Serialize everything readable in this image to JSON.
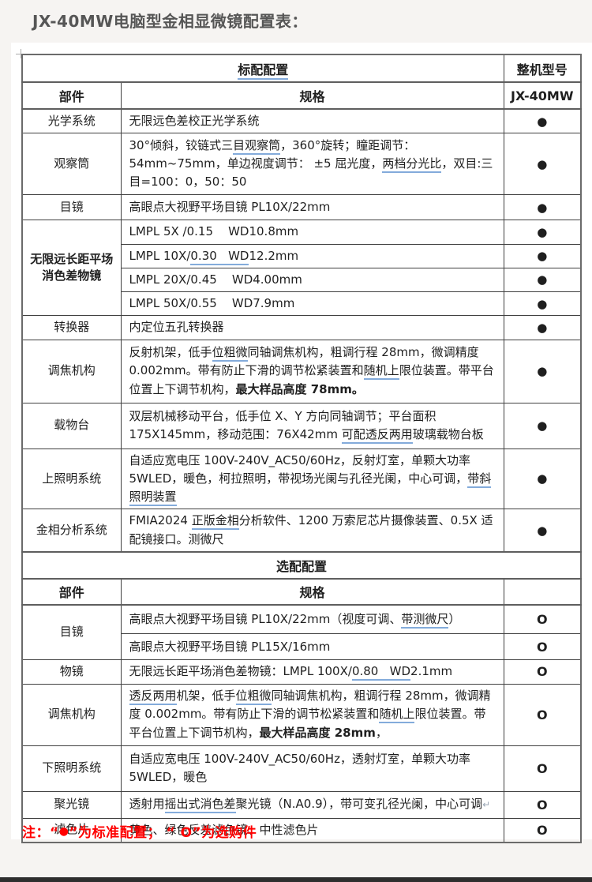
{
  "page": {
    "title": "JX-40MW电脑型金相显微镜配置表：",
    "legend": {
      "prefix": "注：“",
      "bullet": "●",
      "suffix": "”为标准配置； “ O”为选购件"
    }
  },
  "colors": {
    "note_red": "#ff0000",
    "underline_blue": "#83abdb",
    "table_border": "#404040",
    "title_gray": "#565656",
    "bottom_bar": "#2e2e2e"
  },
  "marks": {
    "standard": "●",
    "optional": "O"
  },
  "table": {
    "rows": [
      {
        "h": 35,
        "sep": true,
        "cells": [
          {
            "kind": "header",
            "colspan": 2,
            "name": "standard-config-header",
            "segments": [
              {
                "t": "标配配置",
                "u": true
              }
            ]
          },
          {
            "kind": "header",
            "name": "model-column-header",
            "segments": [
              {
                "t": "整机型号"
              }
            ]
          }
        ]
      },
      {
        "h": 34,
        "sep": true,
        "cells": [
          {
            "kind": "header",
            "name": "part-column-header",
            "segments": [
              {
                "t": "部件"
              }
            ]
          },
          {
            "kind": "header",
            "name": "spec-column-header",
            "segments": [
              {
                "t": "规格"
              }
            ]
          },
          {
            "kind": "header",
            "name": "model-value-header",
            "segments": [
              {
                "t": "JX-40MW"
              }
            ]
          }
        ]
      },
      {
        "h": 30,
        "cells": [
          {
            "kind": "part",
            "segments": [
              {
                "t": "光学系统"
              }
            ]
          },
          {
            "kind": "spec",
            "segments": [
              {
                "t": "无限远色差校正光学系统"
              }
            ]
          },
          {
            "kind": "mark",
            "segments": [
              {
                "t": "●"
              }
            ]
          }
        ]
      },
      {
        "h": 78,
        "cells": [
          {
            "kind": "part",
            "segments": [
              {
                "t": "观察筒"
              }
            ]
          },
          {
            "kind": "spec",
            "segments": [
              {
                "t": "30°倾斜，铰链式三"
              },
              {
                "t": "目观察筒",
                "u": true
              },
              {
                "t": "，360°旋转；瞳距调节：54mm~75mm，单边视度调节： ±5 屈光度，"
              },
              {
                "t": "两档分光比",
                "u": true
              },
              {
                "t": "，双目:三目=100：0，50：50"
              }
            ]
          },
          {
            "kind": "mark",
            "segments": [
              {
                "t": "●"
              }
            ]
          }
        ]
      },
      {
        "h": 32,
        "cells": [
          {
            "kind": "part",
            "segments": [
              {
                "t": "目镜"
              }
            ]
          },
          {
            "kind": "spec",
            "segments": [
              {
                "t": "高眼点大视野平场目镜 PL10X/22mm"
              }
            ]
          },
          {
            "kind": "mark",
            "segments": [
              {
                "t": "●"
              }
            ]
          }
        ]
      },
      {
        "h": 28,
        "cells": [
          {
            "kind": "part",
            "rowspan": 4,
            "bold": true,
            "name": "objective-group-label",
            "segments": [
              {
                "t": "无限远长距平场消色差物镜"
              }
            ]
          },
          {
            "kind": "spec",
            "segments": [
              {
                "t": "LMPL 5X /0.15    WD10.8mm"
              }
            ]
          },
          {
            "kind": "mark",
            "segments": [
              {
                "t": "●"
              }
            ]
          }
        ]
      },
      {
        "h": 28,
        "cells": [
          {
            "kind": "spec",
            "segments": [
              {
                "t": "LMPL 10X/"
              },
              {
                "t": "0.30   WD",
                "u": true
              },
              {
                "t": "12.2mm"
              }
            ]
          },
          {
            "kind": "mark",
            "segments": [
              {
                "t": "●"
              }
            ]
          }
        ]
      },
      {
        "h": 28,
        "cells": [
          {
            "kind": "spec",
            "segments": [
              {
                "t": "LMPL 20X/0.45    WD4.00mm"
              }
            ]
          },
          {
            "kind": "mark",
            "segments": [
              {
                "t": "●"
              }
            ]
          }
        ]
      },
      {
        "h": 29,
        "cells": [
          {
            "kind": "spec",
            "segments": [
              {
                "t": "LMPL 50X/0.55    WD7.9mm"
              }
            ]
          },
          {
            "kind": "mark",
            "segments": [
              {
                "t": "●"
              }
            ]
          }
        ]
      },
      {
        "h": 28,
        "cells": [
          {
            "kind": "part",
            "segments": [
              {
                "t": "转换器"
              }
            ]
          },
          {
            "kind": "spec",
            "segments": [
              {
                "t": "内定位五孔转换器"
              }
            ]
          },
          {
            "kind": "mark",
            "segments": [
              {
                "t": "●"
              }
            ]
          }
        ]
      },
      {
        "h": 80,
        "cells": [
          {
            "kind": "part",
            "segments": [
              {
                "t": "调焦机构"
              }
            ]
          },
          {
            "kind": "spec",
            "segments": [
              {
                "t": "反射机架，低手"
              },
              {
                "t": "位粗微",
                "u": true
              },
              {
                "t": "同轴调焦机构，粗调行程 28mm，微调精度 0.002mm。带有防止下滑的调节松紧装置和"
              },
              {
                "t": "随机上",
                "u": true
              },
              {
                "t": "限位装置。带平台位置上下调节机构，"
              },
              {
                "t": "最大样品高度 78mm。",
                "b": true
              }
            ]
          },
          {
            "kind": "mark",
            "segments": [
              {
                "t": "●"
              }
            ]
          }
        ]
      },
      {
        "h": 58,
        "cells": [
          {
            "kind": "part",
            "segments": [
              {
                "t": "载物台"
              }
            ]
          },
          {
            "kind": "spec",
            "segments": [
              {
                "t": "双层机械移动平台，低手位 X、Y 方向同轴调节；平台面积 175X145mm，移动范围：76X42mm "
              },
              {
                "t": "可配透反两用",
                "u": true
              },
              {
                "t": "玻璃载物台板"
              }
            ]
          },
          {
            "kind": "mark",
            "segments": [
              {
                "t": "●"
              }
            ]
          }
        ]
      },
      {
        "h": 69,
        "cells": [
          {
            "kind": "part",
            "segments": [
              {
                "t": "上照明系统"
              }
            ]
          },
          {
            "kind": "spec",
            "segments": [
              {
                "t": "自适应宽电压 100V-240V_AC50/60Hz，反射灯室，单颗大功率 5WLED，暖色，柯拉照明，带视场光阑与孔径光阑，中心可调，"
              },
              {
                "t": "带斜照明装置",
                "u": true
              }
            ]
          },
          {
            "kind": "mark",
            "segments": [
              {
                "t": "●"
              }
            ]
          }
        ]
      },
      {
        "h": 53,
        "sep": true,
        "cells": [
          {
            "kind": "part",
            "segments": [
              {
                "t": "金相分析系统"
              }
            ]
          },
          {
            "kind": "spec",
            "segments": [
              {
                "t": "FMIA2024 "
              },
              {
                "t": "正版金相",
                "u": true
              },
              {
                "t": "分析软件、1200 万索尼芯片摄像装置、0.5X 适配镜接口。测微尺"
              }
            ]
          },
          {
            "kind": "mark",
            "segments": [
              {
                "t": "●"
              }
            ]
          }
        ]
      },
      {
        "h": 34,
        "sep": true,
        "cells": [
          {
            "kind": "header",
            "colspan": 3,
            "name": "optional-config-header",
            "segments": [
              {
                "t": "选配配置"
              }
            ]
          }
        ]
      },
      {
        "h": 33,
        "sep": true,
        "cells": [
          {
            "kind": "header",
            "name": "part-column-header-optional",
            "segments": [
              {
                "t": "部件"
              }
            ]
          },
          {
            "kind": "header",
            "name": "spec-column-header-optional",
            "segments": [
              {
                "t": "规格"
              }
            ]
          },
          {
            "kind": "header",
            "name": "empty-header-cell",
            "segments": []
          }
        ]
      },
      {
        "h": 37,
        "cells": [
          {
            "kind": "part",
            "rowspan": 2,
            "segments": [
              {
                "t": "目镜"
              }
            ]
          },
          {
            "kind": "spec",
            "segments": [
              {
                "t": "高眼点大视野平场目镜 PL10X/22mm（视度可调、"
              },
              {
                "t": "带测微尺",
                "u": true
              },
              {
                "t": "）"
              }
            ]
          },
          {
            "kind": "mark",
            "segments": [
              {
                "t": "O",
                "b": true
              }
            ]
          }
        ]
      },
      {
        "h": 33,
        "cells": [
          {
            "kind": "spec",
            "segments": [
              {
                "t": "高眼点大视野平场目镜 PL15X/16mm"
              }
            ]
          },
          {
            "kind": "mark",
            "segments": [
              {
                "t": "O",
                "b": true
              }
            ]
          }
        ]
      },
      {
        "h": 27,
        "cells": [
          {
            "kind": "part",
            "segments": [
              {
                "t": "物镜"
              }
            ]
          },
          {
            "kind": "spec",
            "segments": [
              {
                "t": "无限远长距平场消色差物镜：LMPL 100X/"
              },
              {
                "t": "0.80   WD",
                "u": true
              },
              {
                "t": "2.1mm"
              }
            ]
          },
          {
            "kind": "mark",
            "segments": [
              {
                "t": "O",
                "b": true
              }
            ]
          }
        ]
      },
      {
        "h": 78,
        "cells": [
          {
            "kind": "part",
            "segments": [
              {
                "t": "调焦机构"
              }
            ]
          },
          {
            "kind": "spec",
            "segments": [
              {
                "t": "透反两用",
                "u": true
              },
              {
                "t": "机架，低手"
              },
              {
                "t": "位粗微",
                "u": true
              },
              {
                "t": "同轴调焦机构，粗调行程 28mm，微调精度 0.002mm。带有防止下滑的调节松紧装置和"
              },
              {
                "t": "随机上",
                "u": true
              },
              {
                "t": "限位装置。带平台位置上下调节机构，"
              },
              {
                "t": "最大样品高度 28mm",
                "b": true
              },
              {
                "t": "，"
              }
            ]
          },
          {
            "kind": "mark",
            "segments": [
              {
                "t": "O",
                "b": true
              }
            ]
          }
        ]
      },
      {
        "h": 58,
        "cells": [
          {
            "kind": "part",
            "segments": [
              {
                "t": "下照明系统"
              }
            ]
          },
          {
            "kind": "spec",
            "segments": [
              {
                "t": "自适应宽电压 100V-240V_AC50/60Hz，透射灯室，单颗大功率 5WLED，暖色"
              }
            ]
          },
          {
            "kind": "mark",
            "segments": [
              {
                "t": "O",
                "b": true
              }
            ]
          }
        ]
      },
      {
        "h": 34,
        "cells": [
          {
            "kind": "part",
            "segments": [
              {
                "t": "聚光镜"
              }
            ]
          },
          {
            "kind": "spec",
            "segments": [
              {
                "t": "透射用"
              },
              {
                "t": "摇出式消色差",
                "u": true
              },
              {
                "t": "聚光镜（N.A0.9），带可变孔径光阑，中心可调"
              },
              {
                "t": "↵",
                "gray": true
              }
            ]
          },
          {
            "kind": "mark",
            "segments": [
              {
                "t": "O",
                "b": true
              }
            ]
          }
        ]
      },
      {
        "h": 30,
        "cells": [
          {
            "kind": "part",
            "segments": [
              {
                "t": "滤色片"
              }
            ]
          },
          {
            "kind": "spec",
            "segments": [
              {
                "t": "黄色、绿色反差滤色镜、中性滤色片"
              }
            ]
          },
          {
            "kind": "mark",
            "segments": [
              {
                "t": "O",
                "b": true
              }
            ]
          }
        ]
      }
    ]
  }
}
